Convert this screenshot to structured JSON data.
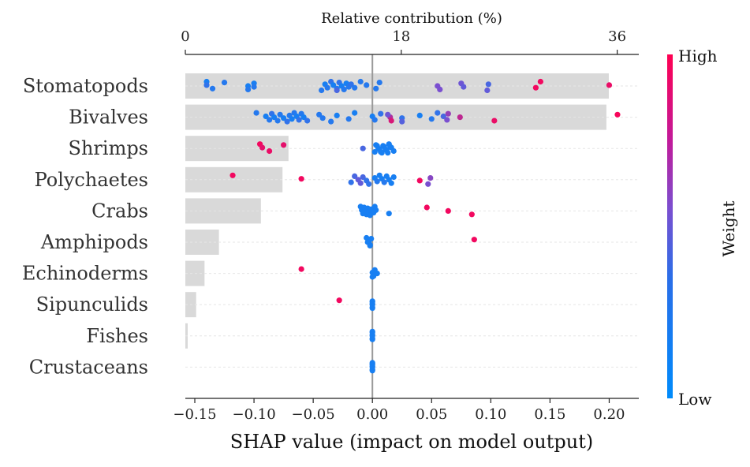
{
  "chart_data": {
    "type": "scatter",
    "title": "",
    "xlabel": "SHAP value (impact on model output)",
    "top_axis": {
      "label": "Relative contribution (%)",
      "ticks": [
        "0",
        "18",
        "36"
      ],
      "tick_values": [
        0,
        18,
        36
      ],
      "lim": [
        0,
        37.8
      ]
    },
    "xlim": [
      -0.158,
      0.225
    ],
    "x_ticks": [
      -0.15,
      -0.1,
      -0.05,
      0.0,
      0.05,
      0.1,
      0.15,
      0.2
    ],
    "x_tick_labels": [
      "−0.15",
      "−0.10",
      "−0.05",
      "0.00",
      "0.05",
      "0.10",
      "0.15",
      "0.20"
    ],
    "colorbar": {
      "label": "Weight",
      "high": "High",
      "low": "Low",
      "colors": [
        "#008bfb",
        "#ff0052"
      ]
    },
    "categories": [
      "Stomatopods",
      "Bivalves",
      "Shrimps",
      "Polychaetes",
      "Crabs",
      "Amphipods",
      "Echinoderms",
      "Sipunculids",
      "Fishes",
      "Crustaceans"
    ],
    "bar_contribution": [
      35.3,
      35.1,
      8.6,
      8.1,
      6.3,
      2.8,
      1.6,
      0.9,
      0.2,
      0.0
    ],
    "series": [
      {
        "category": "Stomatopods",
        "points": [
          [
            -0.14,
            0.1
          ],
          [
            -0.14,
            0.2
          ],
          [
            -0.135,
            0.15
          ],
          [
            -0.125,
            0.15
          ],
          [
            -0.105,
            0.1
          ],
          [
            -0.105,
            0.15
          ],
          [
            -0.1,
            0.1
          ],
          [
            -0.1,
            0.15
          ],
          [
            -0.043,
            0.15
          ],
          [
            -0.04,
            0.1
          ],
          [
            -0.038,
            0.15
          ],
          [
            -0.035,
            0.2
          ],
          [
            -0.033,
            0.1
          ],
          [
            -0.03,
            0.15
          ],
          [
            -0.028,
            0.2
          ],
          [
            -0.026,
            0.1
          ],
          [
            -0.024,
            0.15
          ],
          [
            -0.022,
            0.1
          ],
          [
            -0.02,
            0.15
          ],
          [
            -0.03,
            0.3
          ],
          [
            -0.018,
            0.2
          ],
          [
            -0.015,
            0.15
          ],
          [
            -0.01,
            0.15
          ],
          [
            -0.005,
            0.15
          ],
          [
            0.003,
            0.15
          ],
          [
            0.006,
            0.15
          ],
          [
            0.055,
            0.5
          ],
          [
            0.057,
            0.5
          ],
          [
            0.075,
            0.45
          ],
          [
            0.077,
            0.4
          ],
          [
            0.097,
            0.4
          ],
          [
            0.098,
            0.3
          ],
          [
            0.138,
            0.95
          ],
          [
            0.142,
            0.95
          ],
          [
            0.2,
            0.92
          ]
        ]
      },
      {
        "category": "Bivalves",
        "points": [
          [
            -0.098,
            0.15
          ],
          [
            -0.09,
            0.1
          ],
          [
            -0.087,
            0.15
          ],
          [
            -0.085,
            0.2
          ],
          [
            -0.083,
            0.1
          ],
          [
            -0.08,
            0.15
          ],
          [
            -0.078,
            0.15
          ],
          [
            -0.075,
            0.1
          ],
          [
            -0.072,
            0.2
          ],
          [
            -0.07,
            0.15
          ],
          [
            -0.068,
            0.1
          ],
          [
            -0.066,
            0.15
          ],
          [
            -0.064,
            0.1
          ],
          [
            -0.062,
            0.2
          ],
          [
            -0.06,
            0.15
          ],
          [
            -0.058,
            0.1
          ],
          [
            -0.055,
            0.2
          ],
          [
            -0.045,
            0.15
          ],
          [
            -0.042,
            0.15
          ],
          [
            -0.035,
            0.15
          ],
          [
            -0.03,
            0.1
          ],
          [
            -0.02,
            0.15
          ],
          [
            -0.015,
            0.1
          ],
          [
            0.0,
            0.1
          ],
          [
            0.002,
            0.15
          ],
          [
            0.007,
            0.2
          ],
          [
            0.015,
            0.7
          ],
          [
            0.016,
            0.85
          ],
          [
            0.013,
            0.45
          ],
          [
            0.025,
            0.2
          ],
          [
            0.025,
            0.35
          ],
          [
            0.04,
            0.1
          ],
          [
            0.05,
            0.15
          ],
          [
            0.055,
            0.2
          ],
          [
            0.06,
            0.3
          ],
          [
            0.063,
            0.5
          ],
          [
            0.064,
            0.6
          ],
          [
            0.074,
            0.75
          ],
          [
            0.103,
            0.92
          ],
          [
            0.207,
            0.97
          ]
        ]
      },
      {
        "category": "Shrimps",
        "points": [
          [
            -0.095,
            0.95
          ],
          [
            -0.093,
            0.9
          ],
          [
            -0.087,
            0.92
          ],
          [
            -0.075,
            0.9
          ],
          [
            -0.008,
            0.3
          ],
          [
            0.002,
            0.1
          ],
          [
            0.004,
            0.1
          ],
          [
            0.006,
            0.1
          ],
          [
            0.008,
            0.1
          ],
          [
            0.01,
            0.1
          ],
          [
            0.012,
            0.1
          ],
          [
            0.014,
            0.1
          ],
          [
            0.016,
            0.1
          ],
          [
            0.018,
            0.1
          ],
          [
            0.003,
            0.1
          ],
          [
            0.005,
            0.1
          ],
          [
            0.007,
            0.1
          ],
          [
            0.009,
            0.1
          ],
          [
            0.011,
            0.1
          ],
          [
            0.013,
            0.1
          ],
          [
            0.015,
            0.1
          ]
        ]
      },
      {
        "category": "Polychaetes",
        "points": [
          [
            -0.118,
            0.95
          ],
          [
            -0.06,
            0.95
          ],
          [
            -0.018,
            0.2
          ],
          [
            -0.015,
            0.3
          ],
          [
            -0.012,
            0.4
          ],
          [
            -0.01,
            0.4
          ],
          [
            -0.008,
            0.3
          ],
          [
            -0.005,
            0.2
          ],
          [
            -0.003,
            0.2
          ],
          [
            0.002,
            0.1
          ],
          [
            0.004,
            0.15
          ],
          [
            0.006,
            0.1
          ],
          [
            0.008,
            0.1
          ],
          [
            0.01,
            0.15
          ],
          [
            0.012,
            0.1
          ],
          [
            0.014,
            0.1
          ],
          [
            0.016,
            0.1
          ],
          [
            0.018,
            0.1
          ],
          [
            0.04,
            0.95
          ],
          [
            0.047,
            0.5
          ],
          [
            0.049,
            0.55
          ]
        ]
      },
      {
        "category": "Crabs",
        "points": [
          [
            -0.01,
            0.1
          ],
          [
            -0.009,
            0.1
          ],
          [
            -0.008,
            0.1
          ],
          [
            -0.007,
            0.1
          ],
          [
            -0.006,
            0.1
          ],
          [
            -0.005,
            0.1
          ],
          [
            -0.004,
            0.1
          ],
          [
            -0.003,
            0.1
          ],
          [
            -0.002,
            0.1
          ],
          [
            -0.001,
            0.1
          ],
          [
            0.001,
            0.1
          ],
          [
            0.002,
            0.1
          ],
          [
            0.003,
            0.1
          ],
          [
            0.014,
            0.1
          ],
          [
            0.046,
            0.95
          ],
          [
            0.064,
            0.95
          ],
          [
            0.084,
            0.95
          ]
        ]
      },
      {
        "category": "Amphipods",
        "points": [
          [
            -0.005,
            0.1
          ],
          [
            -0.003,
            0.1
          ],
          [
            -0.002,
            0.1
          ],
          [
            -0.001,
            0.1
          ],
          [
            -0.004,
            0.1
          ],
          [
            -0.002,
            0.1
          ],
          [
            0.086,
            0.95
          ]
        ]
      },
      {
        "category": "Echinoderms",
        "points": [
          [
            -0.06,
            0.95
          ],
          [
            0.0,
            0.1
          ],
          [
            0.001,
            0.1
          ],
          [
            0.002,
            0.1
          ],
          [
            0.004,
            0.1
          ],
          [
            0.0,
            0.1
          ]
        ]
      },
      {
        "category": "Sipunculids",
        "points": [
          [
            -0.028,
            0.95
          ],
          [
            0.0,
            0.1
          ],
          [
            0.0,
            0.1
          ],
          [
            0.0,
            0.1
          ],
          [
            0.0,
            0.1
          ],
          [
            0.0,
            0.1
          ],
          [
            0.0,
            0.1
          ]
        ]
      },
      {
        "category": "Fishes",
        "points": [
          [
            0.0,
            0.1
          ],
          [
            0.0,
            0.1
          ],
          [
            0.0,
            0.1
          ],
          [
            0.0,
            0.1
          ],
          [
            0.0,
            0.1
          ],
          [
            0.0,
            0.1
          ]
        ]
      },
      {
        "category": "Crustaceans",
        "points": [
          [
            0.0,
            0.1
          ],
          [
            0.0,
            0.1
          ],
          [
            0.0,
            0.1
          ],
          [
            0.0,
            0.1
          ],
          [
            0.0,
            0.1
          ],
          [
            0.0,
            0.1
          ],
          [
            0.0,
            0.1
          ]
        ]
      }
    ],
    "grid": "horizontal-dashed",
    "legend": "colorbar-right"
  }
}
